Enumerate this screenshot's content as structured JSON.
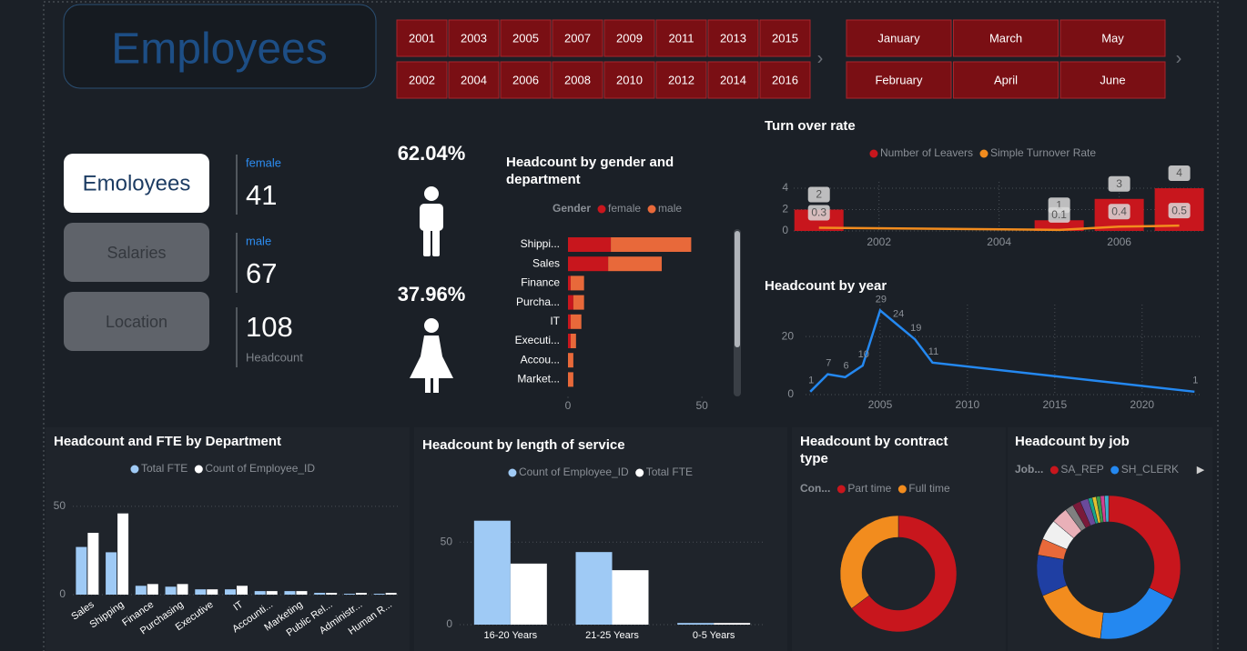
{
  "header": {
    "title": "Employees"
  },
  "years": [
    2001,
    2002,
    2003,
    2004,
    2005,
    2006,
    2007,
    2008,
    2009,
    2010,
    2011,
    2012,
    2013,
    2014,
    2015,
    2016
  ],
  "months": [
    "January",
    "February",
    "March",
    "April",
    "May",
    "June"
  ],
  "nav": [
    "Emoloyees",
    "Salaries",
    "Location"
  ],
  "kpis": [
    {
      "label": "female",
      "value": 41
    },
    {
      "label": "male",
      "value": 67
    },
    {
      "label": "Headcount",
      "value": 108
    }
  ],
  "gender_share": {
    "values": [
      62.04,
      37.96
    ],
    "value_labels": [
      "62.04%",
      "37.96%"
    ]
  },
  "chart_data": [
    {
      "type": "hbar_stacked",
      "title": "Headcount by gender and department",
      "legend_title": "Gender",
      "categories": [
        "Shippi...",
        "Sales",
        "Finance",
        "Purcha...",
        "IT",
        "Executi...",
        "Accou...",
        "Market..."
      ],
      "series": [
        {
          "name": "female",
          "color": "#c8161d",
          "values": [
            16,
            15,
            1,
            2,
            1,
            1,
            0,
            0
          ]
        },
        {
          "name": "male",
          "color": "#e8693a",
          "values": [
            30,
            20,
            5,
            4,
            4,
            2,
            2,
            2
          ]
        }
      ],
      "xlim": [
        0,
        53
      ],
      "xticks": [
        0,
        50
      ]
    },
    {
      "type": "bar_line",
      "title": "Turn over rate",
      "x": [
        2001,
        2005,
        2006,
        2007
      ],
      "series": [
        {
          "name": "Number of Leavers",
          "color": "#c8161d",
          "values": [
            2,
            1,
            3,
            4
          ]
        },
        {
          "name": "Simple Turnover Rate",
          "color": "#f28c1e",
          "values": [
            0.3,
            0.1,
            0.4,
            0.5
          ]
        }
      ],
      "xlim": [
        2000.58,
        2007.4
      ],
      "xticks": [
        2002,
        2004,
        2006
      ],
      "ylim": [
        0,
        4.6
      ],
      "yticks": [
        0,
        2,
        4
      ],
      "grid": true
    },
    {
      "type": "line",
      "title": "Headcount by year",
      "x": [
        2001,
        2002,
        2003,
        2004,
        2005,
        2006,
        2007,
        2008,
        2023
      ],
      "values": [
        1,
        7,
        6,
        10,
        29,
        24,
        19,
        11,
        1
      ],
      "color": "#2488f0",
      "xlim": [
        2000.73,
        2023.4
      ],
      "xticks": [
        2005,
        2010,
        2015,
        2020
      ],
      "ylim": [
        0,
        31
      ],
      "yticks": [
        0,
        20
      ],
      "grid": true
    },
    {
      "type": "bar_grouped",
      "title": "Headcount and FTE by Department",
      "categories": [
        "Sales",
        "Shipping",
        "Finance",
        "Purchasing",
        "Executive",
        "IT",
        "Accounti...",
        "Marketing",
        "Public Rel...",
        "Administr...",
        "Human R..."
      ],
      "series": [
        {
          "name": "Total FTE",
          "color": "#9fcaf5",
          "values": [
            27,
            24,
            5,
            4.5,
            3,
            3,
            2,
            2,
            1,
            0.5,
            0.5
          ]
        },
        {
          "name": "Count of Employee_ID",
          "color": "#ffffff",
          "values": [
            35,
            46,
            6,
            6,
            3,
            5,
            2,
            2,
            1,
            1,
            1
          ]
        }
      ],
      "ylim": [
        0,
        54.6
      ],
      "yticks": [
        0,
        50
      ],
      "grid": true
    },
    {
      "type": "bar_grouped",
      "title": "Headcount by length of service",
      "categories": [
        "16-20 Years",
        "21-25 Years",
        "0-5 Years"
      ],
      "series": [
        {
          "name": "Count of Employee_ID",
          "color": "#9fcaf5",
          "values": [
            63,
            44,
            1
          ]
        },
        {
          "name": "Total FTE",
          "color": "#ffffff",
          "values": [
            37,
            33,
            1
          ]
        }
      ],
      "ylim": [
        0,
        70
      ],
      "yticks": [
        0,
        50
      ],
      "grid": true
    },
    {
      "type": "donut",
      "title": "Headcount by contract type",
      "legend_title": "Con...",
      "categories": [
        "Part time",
        "Full time"
      ],
      "values": [
        70,
        38
      ],
      "colors": [
        "#c8161d",
        "#f28c1e"
      ]
    },
    {
      "type": "donut",
      "title": "Headcount by job",
      "legend_title": "Job...",
      "categories": [
        "SA_REP",
        "SH_CLERK",
        null,
        null,
        null,
        null,
        null,
        null,
        null,
        null,
        null,
        null,
        null,
        null,
        null
      ],
      "values": [
        35,
        21,
        18,
        10,
        4,
        5,
        4,
        2,
        2,
        2,
        1,
        1,
        1,
        1,
        1
      ],
      "colors": [
        "#c8161d",
        "#2488f0",
        "#f28c1e",
        "#1f3fa3",
        "#e8693a",
        "#f0f0f0",
        "#e9b0b8",
        "#808080",
        "#7a1a3a",
        "#6a4a9a",
        "#19a38a",
        "#e0c030",
        "#3a9a4a",
        "#d04090",
        "#40b0d0"
      ]
    }
  ]
}
